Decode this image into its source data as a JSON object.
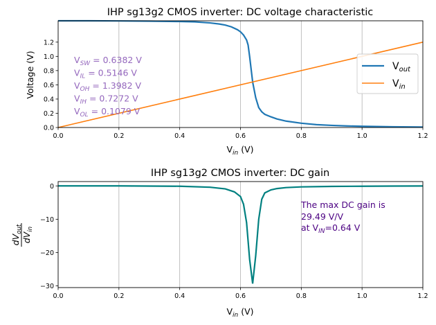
{
  "chart_data": [
    {
      "type": "line",
      "title": "IHP sg13g2 CMOS inverter: DC voltage characteristic",
      "xlabel": "V_in (V)",
      "ylabel": "Voltage (V)",
      "xlim": [
        0,
        1.2
      ],
      "ylim": [
        0,
        1.5
      ],
      "grid": "x",
      "legend_location": "center-right",
      "x_ticks": [
        "0.0",
        "0.2",
        "0.4",
        "0.6",
        "0.8",
        "1.0",
        "1.2"
      ],
      "y_ticks": [
        "0.0",
        "0.2",
        "0.4",
        "0.6",
        "0.8",
        "1.0",
        "1.2"
      ],
      "x_tick_values": [
        0,
        0.2,
        0.4,
        0.6,
        0.8,
        1.0,
        1.2
      ],
      "y_tick_values": [
        0,
        0.2,
        0.4,
        0.6,
        0.8,
        1.0,
        1.2
      ],
      "series": [
        {
          "name": "V_out",
          "color": "#1f77b4",
          "x": [
            0,
            0.1,
            0.2,
            0.3,
            0.4,
            0.45,
            0.5,
            0.53,
            0.55,
            0.57,
            0.59,
            0.6,
            0.61,
            0.62,
            0.625,
            0.63,
            0.635,
            0.64,
            0.645,
            0.65,
            0.655,
            0.66,
            0.67,
            0.68,
            0.7,
            0.72,
            0.75,
            0.8,
            0.85,
            0.9,
            0.95,
            1.0,
            1.1,
            1.2
          ],
          "y": [
            1.5,
            1.5,
            1.498,
            1.495,
            1.49,
            1.485,
            1.47,
            1.455,
            1.44,
            1.415,
            1.375,
            1.345,
            1.3,
            1.23,
            1.16,
            1.0,
            0.82,
            0.64,
            0.53,
            0.42,
            0.35,
            0.28,
            0.22,
            0.185,
            0.15,
            0.12,
            0.09,
            0.06,
            0.04,
            0.03,
            0.022,
            0.017,
            0.01,
            0.006
          ]
        },
        {
          "name": "V_in",
          "color": "#ff7f0e",
          "x": [
            0,
            1.2
          ],
          "y": [
            0,
            1.2
          ]
        }
      ],
      "annotations": [
        {
          "label": "V_SW = 0.6382 V"
        },
        {
          "label": "V_IL = 0.5146 V"
        },
        {
          "label": "V_OH = 1.3982 V"
        },
        {
          "label": "V_IH = 0.7272 V"
        },
        {
          "label": "V_OL = 0.1079 V"
        }
      ]
    },
    {
      "type": "line",
      "title": "IHP sg13g2 CMOS inverter: DC gain",
      "xlabel": "V_in (V)",
      "ylabel": "dV_out / dV_in",
      "xlim": [
        0,
        1.2
      ],
      "ylim": [
        -30.5,
        1.3
      ],
      "grid": "x",
      "x_ticks": [
        "0.0",
        "0.2",
        "0.4",
        "0.6",
        "0.8",
        "1.0",
        "1.2"
      ],
      "y_ticks": [
        "0",
        "−10",
        "−20",
        "−30"
      ],
      "x_tick_values": [
        0,
        0.2,
        0.4,
        0.6,
        0.8,
        1.0,
        1.2
      ],
      "y_tick_values": [
        0,
        -10,
        -20,
        -30
      ],
      "series": [
        {
          "name": "DC gain",
          "color": "#008080",
          "x": [
            0,
            0.2,
            0.4,
            0.5,
            0.55,
            0.58,
            0.6,
            0.61,
            0.62,
            0.63,
            0.64,
            0.65,
            0.66,
            0.67,
            0.68,
            0.7,
            0.72,
            0.75,
            0.8,
            0.9,
            1.0,
            1.1,
            1.2
          ],
          "y": [
            0,
            0,
            -0.1,
            -0.4,
            -0.9,
            -1.8,
            -3.2,
            -5.5,
            -11.0,
            -22.0,
            -29.3,
            -21.0,
            -10.0,
            -4.0,
            -2.1,
            -1.2,
            -0.8,
            -0.5,
            -0.3,
            -0.15,
            -0.1,
            -0.05,
            -0.02
          ]
        }
      ],
      "annotations": [
        {
          "label": "The max DC gain is"
        },
        {
          "label": "29.49 V/V"
        },
        {
          "label": "at V_IN=0.64 V"
        }
      ]
    }
  ],
  "text": {
    "top_title": "IHP sg13g2 CMOS inverter: DC voltage characteristic",
    "top_ylabel": "Voltage (V)",
    "x_prefix": "V",
    "x_sub": "in",
    "x_suffix": " (V)",
    "legend_v": "V",
    "legend_out_sub": "out",
    "legend_in_sub": "in",
    "bottom_title": "IHP sg13g2 CMOS inverter: DC gain",
    "d_num": "dV",
    "d_num_sub": "out",
    "d_den": "dV",
    "d_den_sub": "in",
    "params": [
      {
        "pre": "V",
        "sub": "SW",
        "post": " = 0.6382 V"
      },
      {
        "pre": "V",
        "sub": "IL",
        "post": " = 0.5146 V"
      },
      {
        "pre": "V",
        "sub": "OH",
        "post": " = 1.3982 V"
      },
      {
        "pre": "V",
        "sub": "IH",
        "post": " = 0.7272 V"
      },
      {
        "pre": "V",
        "sub": "OL",
        "post": " = 0.1079 V"
      }
    ],
    "gain_line1": "The max DC gain is",
    "gain_line2": "29.49 V/V",
    "gain_line3_pre": "at V",
    "gain_line3_sub": "IN",
    "gain_line3_post": "=0.64 V"
  },
  "colors": {
    "vout": "#1f77b4",
    "vin": "#ff7f0e",
    "gain": "#008080",
    "param_text": "#9467bd",
    "gain_text": "#4b0082",
    "grid": "#b0b0b0"
  }
}
